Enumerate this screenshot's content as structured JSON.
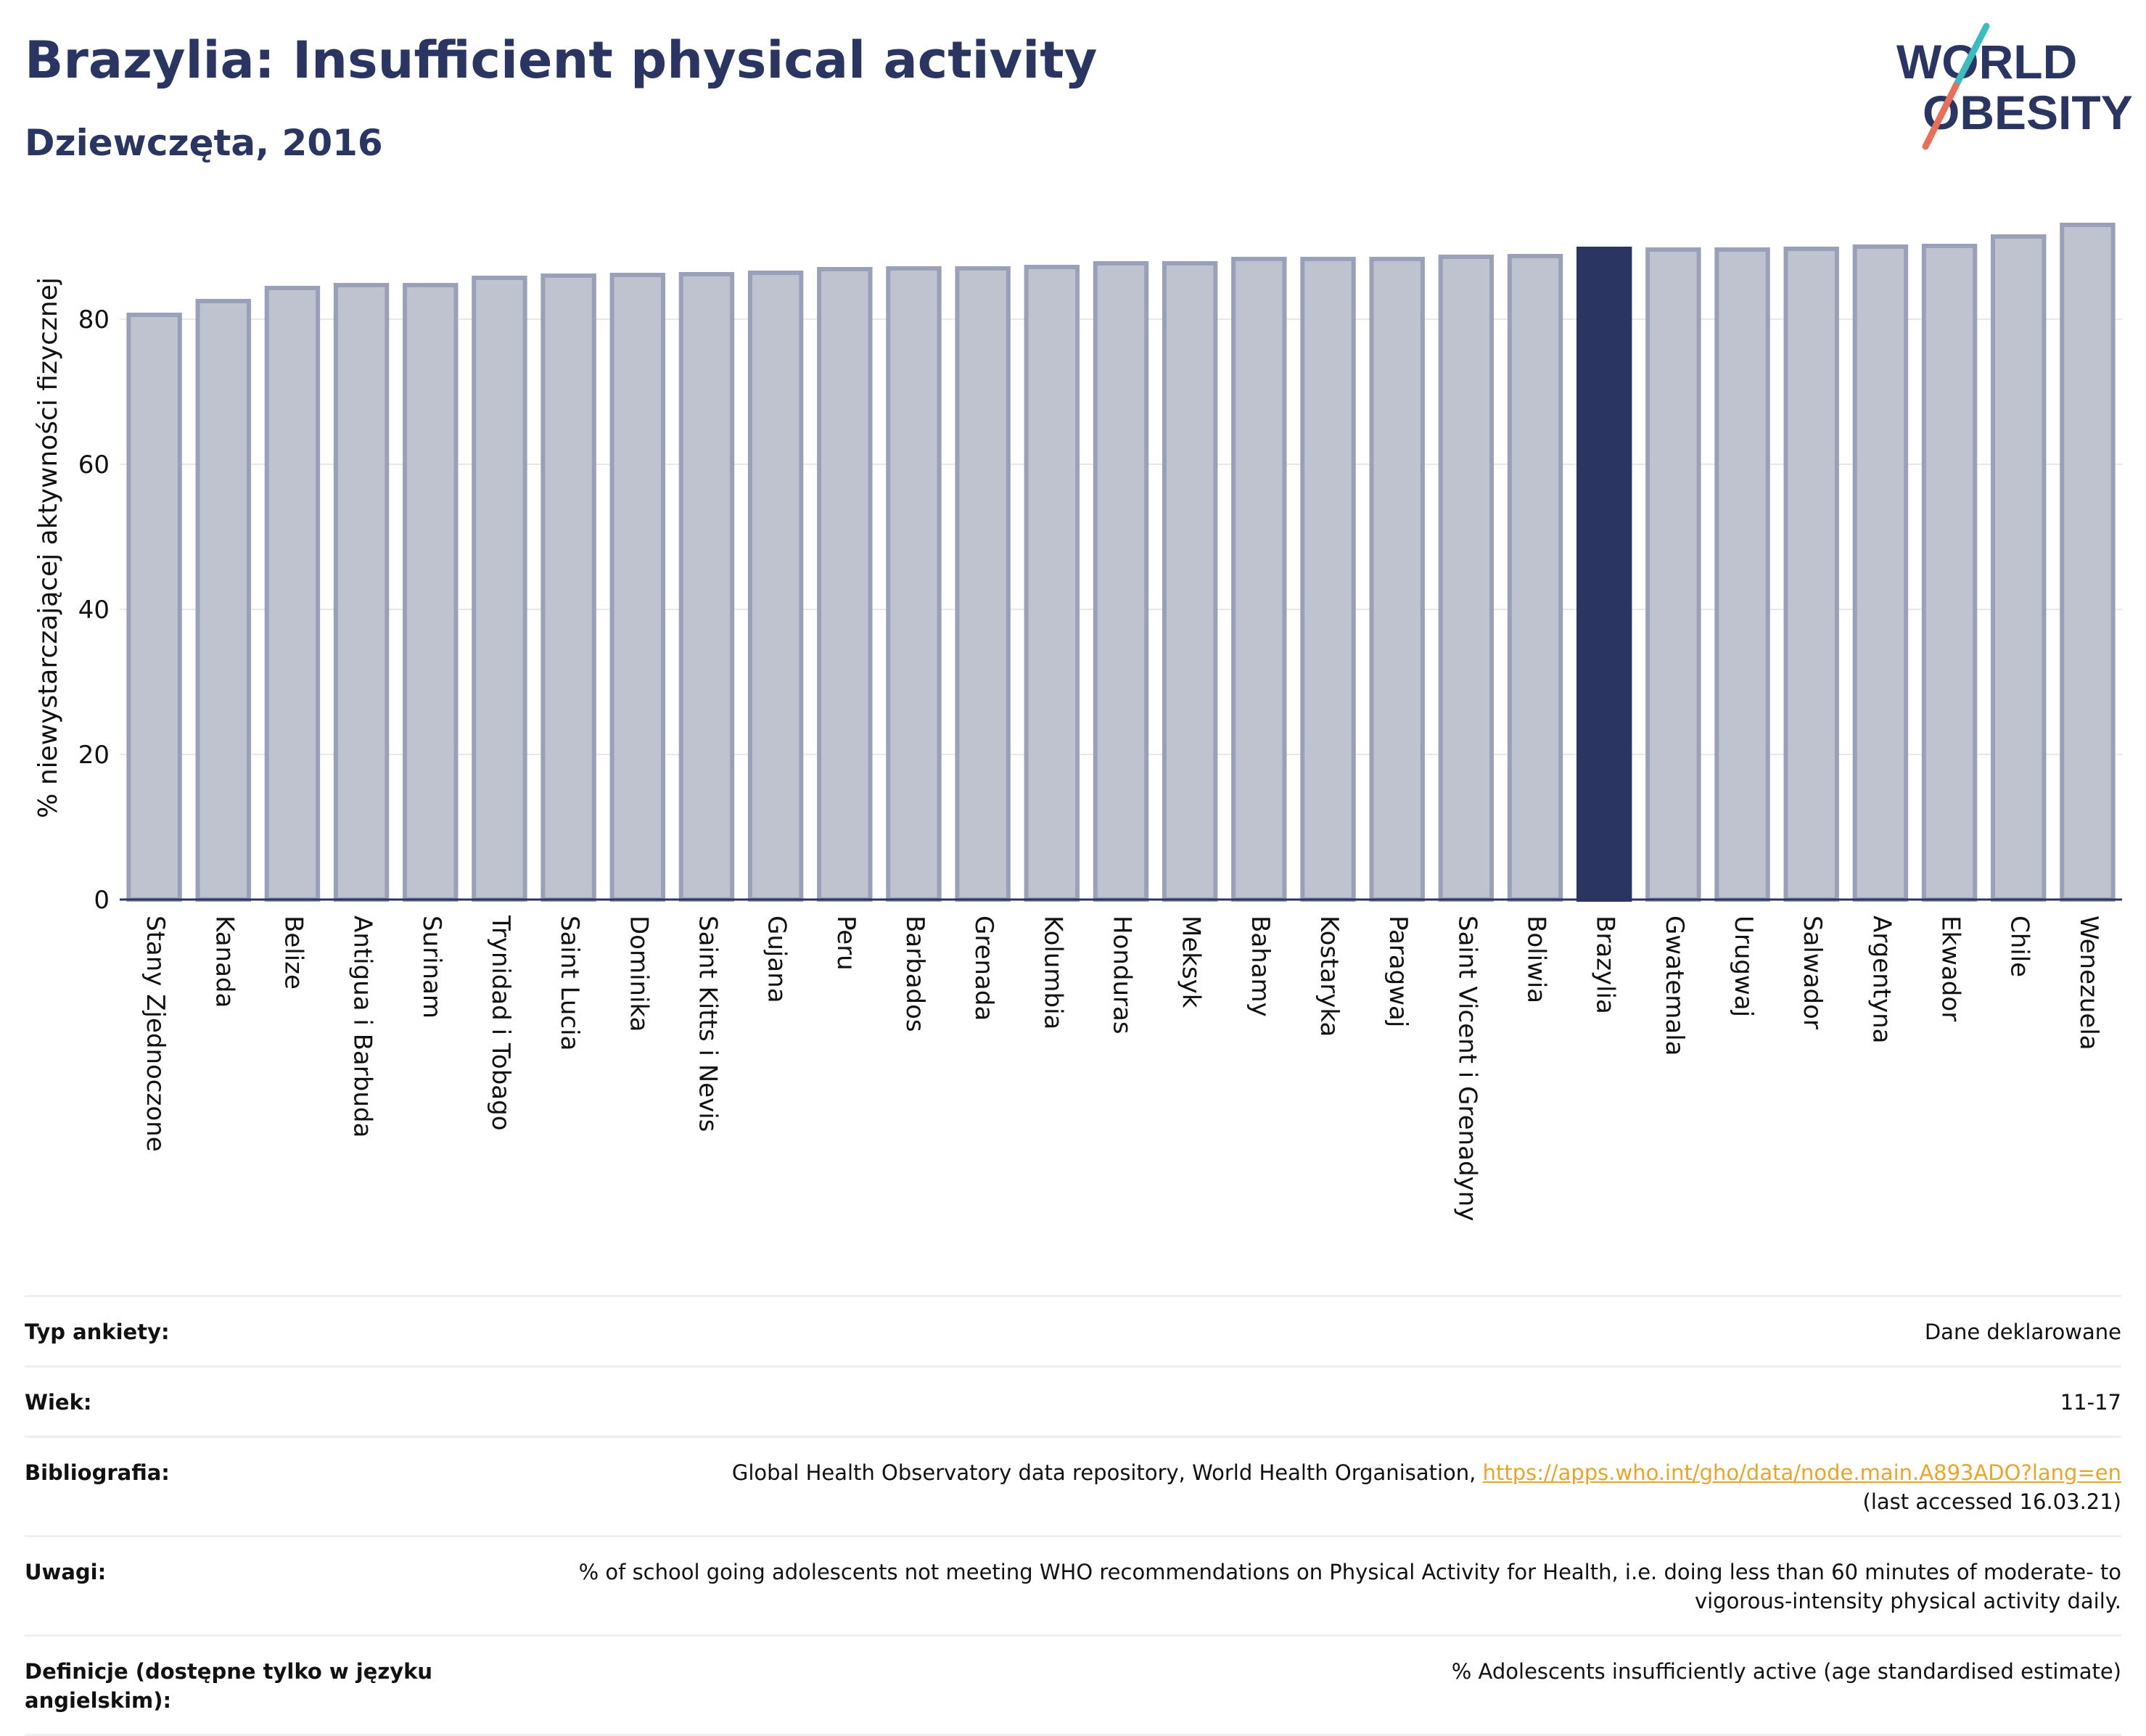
{
  "header": {
    "title": "Brazylia: Insufficient physical activity",
    "subtitle": "Dziewczęta, 2016"
  },
  "logo": {
    "line1": "WORLD",
    "line2": "OBESITY"
  },
  "colors": {
    "bar": "#bfc3d0",
    "bar_border": "#9aa0b8",
    "highlight": "#2a3561",
    "title": "#2a3561",
    "link": "#e8a52b"
  },
  "chart_data": {
    "type": "bar",
    "title": "Brazylia: Insufficient physical activity",
    "subtitle": "Dziewczęta, 2016",
    "ylabel": "% niewystarczającej aktywności fizycznej",
    "xlabel": "",
    "ylim": [
      0,
      93
    ],
    "yticks": [
      0,
      20,
      40,
      60,
      80
    ],
    "grid": true,
    "highlight": "Brazylia",
    "categories": [
      "Stany Zjednoczone",
      "Kanada",
      "Belize",
      "Antigua i Barbuda",
      "Surinam",
      "Trynidad i Tobago",
      "Saint Lucia",
      "Dominika",
      "Saint Kitts i Nevis",
      "Gujana",
      "Peru",
      "Barbados",
      "Grenada",
      "Kolumbia",
      "Honduras",
      "Meksyk",
      "Bahamy",
      "Kostaryka",
      "Paragwaj",
      "Saint Vicent i Grenadyny",
      "Boliwia",
      "Brazylia",
      "Gwatemala",
      "Urugwaj",
      "Salwador",
      "Argentyna",
      "Ekwador",
      "Chile",
      "Wenezuela"
    ],
    "values": [
      80.6,
      82.5,
      84.3,
      84.7,
      84.7,
      85.7,
      86.0,
      86.1,
      86.2,
      86.4,
      86.9,
      87.0,
      87.0,
      87.2,
      87.7,
      87.7,
      88.3,
      88.3,
      88.3,
      88.6,
      88.7,
      89.7,
      89.6,
      89.6,
      89.7,
      90.0,
      90.1,
      91.4,
      93.0
    ]
  },
  "meta": [
    {
      "label": "Typ ankiety:",
      "value": "Dane deklarowane"
    },
    {
      "label": "Wiek:",
      "value": "11-17"
    },
    {
      "label": "Bibliografia:",
      "value": "Global Health Observatory data repository, World Health Organisation,",
      "link": "https://apps.who.int/gho/data/node.main.A893ADO?lang=en",
      "note": "(last accessed 16.03.21)"
    },
    {
      "label": "Uwagi:",
      "value": "% of school going adolescents not meeting WHO recommendations on Physical Activity for Health, i.e. doing less than 60 minutes of moderate- to vigorous-intensity physical activity daily."
    },
    {
      "label": "Definicje (dostępne tylko w języku angielskim):",
      "value": "% Adolescents insufficiently active (age standardised estimate)"
    }
  ]
}
